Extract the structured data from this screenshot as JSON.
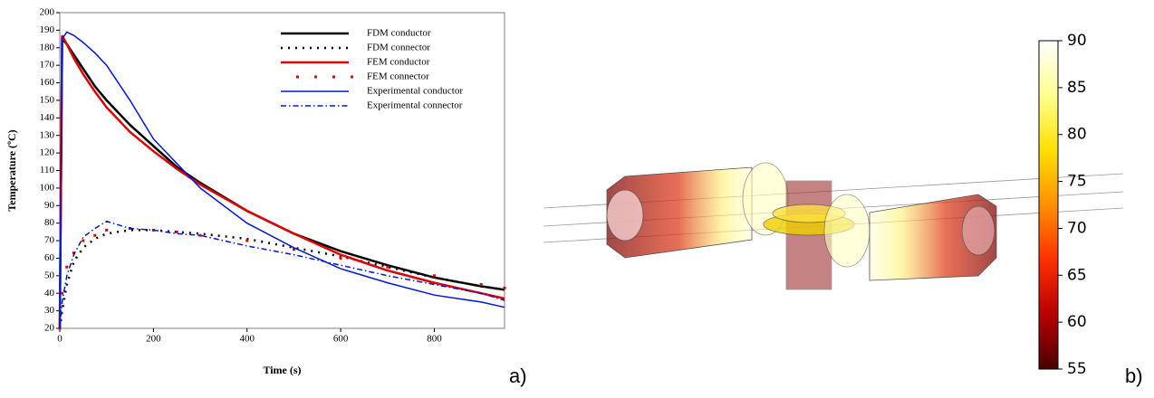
{
  "chart_data": [
    {
      "type": "line",
      "panel_label": "a)",
      "x_label": "Time (s)",
      "y_label": "Temperature (ºC)",
      "x": [
        0,
        5,
        15,
        30,
        50,
        75,
        100,
        150,
        200,
        250,
        300,
        400,
        500,
        600,
        700,
        800,
        900,
        950
      ],
      "series": [
        {
          "name": "FDM  conductor",
          "color": "#000000",
          "style": "solid",
          "width": 2.5,
          "values": [
            20,
            185,
            182,
            176,
            168,
            158,
            150,
            136,
            124,
            112,
            103,
            87,
            74,
            64,
            56,
            49,
            44,
            42
          ]
        },
        {
          "name": "FDM connector",
          "color": "#000000",
          "style": "dotted",
          "width": 2.5,
          "values": [
            20,
            30,
            45,
            58,
            66,
            71,
            74,
            76,
            76,
            75,
            74,
            71,
            66,
            61,
            55,
            49,
            44,
            42
          ]
        },
        {
          "name": "FEM conductor",
          "color": "#e00000",
          "style": "solid",
          "width": 2.5,
          "values": [
            20,
            187,
            182,
            174,
            165,
            155,
            146,
            132,
            121,
            111,
            102,
            87,
            74,
            62,
            53,
            46,
            40,
            37
          ]
        },
        {
          "name": "FEM connector",
          "color": "#e00000",
          "style": "markers",
          "width": 2.5,
          "values": [
            20,
            40,
            55,
            63,
            70,
            73,
            76,
            77,
            76,
            75,
            73,
            70,
            65,
            60,
            55,
            50,
            45,
            43
          ]
        },
        {
          "name": "Experimental conductor",
          "color": "#0018d8",
          "style": "solid",
          "width": 1.5,
          "values": [
            20,
            185,
            189,
            187,
            183,
            177,
            170,
            150,
            128,
            114,
            100,
            80,
            66,
            54,
            46,
            39,
            35,
            32
          ]
        },
        {
          "name": "Experimental connector",
          "color": "#0018d8",
          "style": "dashdot",
          "width": 1.5,
          "values": [
            20,
            35,
            50,
            62,
            72,
            77,
            81,
            77,
            76,
            74,
            73,
            67,
            62,
            56,
            50,
            45,
            40,
            36
          ]
        }
      ],
      "xlim": [
        0,
        950
      ],
      "xticks": [
        0,
        200,
        400,
        600,
        800
      ],
      "ylim": [
        20,
        200
      ],
      "yticks": [
        20,
        30,
        40,
        50,
        60,
        70,
        80,
        90,
        100,
        110,
        120,
        130,
        140,
        150,
        160,
        170,
        180,
        190,
        200
      ]
    },
    {
      "type": "colorbar",
      "panel_label": "b)",
      "ylim": [
        55,
        90
      ],
      "yticks": [
        55,
        60,
        65,
        70,
        75,
        80,
        85,
        90
      ],
      "colormap": [
        "#4a0000",
        "#b80000",
        "#ff3000",
        "#ff9000",
        "#ffe000",
        "#ffff90",
        "#ffffff"
      ]
    }
  ]
}
